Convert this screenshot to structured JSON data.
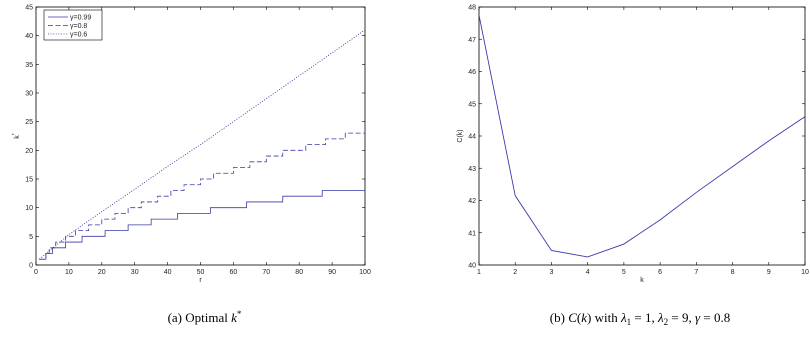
{
  "chart_data": [
    {
      "type": "line",
      "xlabel": "r",
      "ylabel": "k*",
      "xlim": [
        0,
        100
      ],
      "ylim": [
        0,
        45
      ],
      "xticks": [
        0,
        10,
        20,
        30,
        40,
        50,
        60,
        70,
        80,
        90,
        100
      ],
      "yticks": [
        0,
        5,
        10,
        15,
        20,
        25,
        30,
        35,
        40,
        45
      ],
      "legend_position": "top-left",
      "caption": "(a)  Optimal k*",
      "color": "#3a3aa8",
      "series": [
        {
          "name": "γ=0.99",
          "style": "solid",
          "steps": [
            [
              1,
              1
            ],
            [
              3,
              2
            ],
            [
              5,
              3
            ],
            [
              9,
              4
            ],
            [
              14,
              5
            ],
            [
              21,
              6
            ],
            [
              28,
              7
            ],
            [
              35,
              8
            ],
            [
              43,
              9
            ],
            [
              53,
              10
            ],
            [
              64,
              11
            ],
            [
              75,
              12
            ],
            [
              87,
              13
            ],
            [
              100,
              13
            ]
          ]
        },
        {
          "name": "γ=0.8",
          "style": "dashed",
          "steps": [
            [
              1,
              1
            ],
            [
              3,
              2
            ],
            [
              4,
              3
            ],
            [
              6,
              4
            ],
            [
              9,
              5
            ],
            [
              12,
              6
            ],
            [
              16,
              7
            ],
            [
              20,
              8
            ],
            [
              24,
              9
            ],
            [
              28,
              10
            ],
            [
              32,
              11
            ],
            [
              37,
              12
            ],
            [
              41,
              13
            ],
            [
              45,
              14
            ],
            [
              50,
              15
            ],
            [
              54,
              16
            ],
            [
              60,
              17
            ],
            [
              65,
              18
            ],
            [
              70,
              19
            ],
            [
              75,
              20
            ],
            [
              82,
              21
            ],
            [
              88,
              22
            ],
            [
              94,
              23
            ],
            [
              100,
              23
            ]
          ]
        },
        {
          "name": "γ=0.6",
          "style": "dotted",
          "points": [
            [
              1,
              1
            ],
            [
              10,
              5.3
            ],
            [
              20,
              9.3
            ],
            [
              30,
              13.2
            ],
            [
              40,
              17.2
            ],
            [
              50,
              21
            ],
            [
              60,
              25
            ],
            [
              70,
              29
            ],
            [
              80,
              33
            ],
            [
              90,
              37
            ],
            [
              100,
              41
            ]
          ]
        }
      ]
    },
    {
      "type": "line",
      "xlabel": "k",
      "ylabel": "C(k)",
      "xlim": [
        1,
        10
      ],
      "ylim": [
        40,
        48
      ],
      "xticks": [
        1,
        2,
        3,
        4,
        5,
        6,
        7,
        8,
        9,
        10
      ],
      "yticks": [
        40,
        41,
        42,
        43,
        44,
        45,
        46,
        47,
        48
      ],
      "caption": "(b)  C(k) with λ1 = 1, λ2 = 9, γ = 0.8",
      "color": "#3a3aa8",
      "series": [
        {
          "x": [
            1,
            2,
            3,
            4,
            5,
            6,
            7,
            8,
            9,
            10
          ],
          "values": [
            47.75,
            42.15,
            40.45,
            40.25,
            40.65,
            41.4,
            42.25,
            43.05,
            43.85,
            44.6
          ]
        }
      ]
    }
  ]
}
